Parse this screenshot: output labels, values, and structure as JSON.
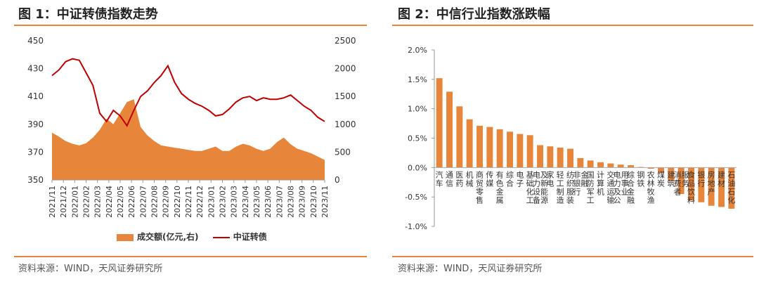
{
  "left": {
    "title": "图 1：中证转债指数走势",
    "source": "资料来源：WIND，天风证券研究所",
    "legend": {
      "volume_label": "成交额(亿元,右)",
      "index_label": "中证转债"
    },
    "colors": {
      "volume": "#e7853a",
      "index": "#c00000",
      "rule": "#e7853a"
    }
  },
  "right": {
    "title": "图 2：中信行业指数涨跌幅",
    "source": "资料来源：WIND，天风证券研究所",
    "colors": {
      "bar": "#e7853a",
      "rule": "#e7853a"
    }
  },
  "chart_data": [
    {
      "type": "line",
      "x_ticks": [
        "2021/11",
        "2021/12",
        "2022/01",
        "2022/02",
        "2022/03",
        "2022/04",
        "2022/05",
        "2022/06",
        "2022/07",
        "2022/08",
        "2022/09",
        "2022/10",
        "2022/11",
        "2022/12",
        "2023/01",
        "2023/02",
        "2023/03",
        "2023/04",
        "2023/05",
        "2023/06",
        "2023/07",
        "2023/08",
        "2023/09",
        "2023/10",
        "2023/11"
      ],
      "y_left_ticks": [
        "450",
        "430",
        "410",
        "390",
        "370",
        "350"
      ],
      "y_right_ticks": [
        "2500",
        "2000",
        "1500",
        "1000",
        "500",
        "0"
      ],
      "ylim_left": [
        350,
        450
      ],
      "ylim_right": [
        0,
        2500
      ],
      "series": [
        {
          "name": "中证转债",
          "axis": "left",
          "values": [
            425,
            429,
            435,
            437,
            436,
            427,
            418,
            398,
            392,
            400,
            396,
            389,
            400,
            410,
            414,
            420,
            425,
            432,
            420,
            412,
            408,
            405,
            403,
            400,
            396,
            397,
            401,
            406,
            409,
            410,
            407,
            409,
            408,
            408,
            409,
            411,
            407,
            403,
            400,
            395,
            392
          ]
        },
        {
          "name": "成交额(亿元,右)",
          "axis": "right",
          "values": [
            850,
            780,
            700,
            650,
            620,
            660,
            760,
            900,
            1100,
            1000,
            1200,
            1400,
            1450,
            950,
            800,
            700,
            620,
            600,
            580,
            560,
            540,
            520,
            520,
            560,
            600,
            520,
            520,
            600,
            650,
            620,
            560,
            520,
            560,
            680,
            760,
            640,
            560,
            520,
            480,
            420,
            360
          ]
        }
      ]
    },
    {
      "type": "bar",
      "y_ticks": [
        "2.0%",
        "1.5%",
        "1.0%",
        "0.5%",
        "0.0%",
        "-0.5%",
        "-1.0%"
      ],
      "ylim": [
        -1.0,
        2.0
      ],
      "categories": [
        "汽车",
        "通信",
        "医药",
        "机械",
        "商贸零售",
        "传媒",
        "有色金属",
        "综合",
        "电子",
        "基础化工",
        "电力设备及新能源",
        "家电",
        "轻工制造",
        "纺织服装",
        "非银行金融",
        "国防军工",
        "计算机",
        "交通运输",
        "电力及公用事业",
        "综合金融",
        "钢铁",
        "农林牧渔",
        "煤炭",
        "建筑",
        "消费者服务",
        "食品饮料",
        "银行",
        "房地产",
        "建材",
        "石油石化"
      ],
      "values": [
        1.52,
        1.29,
        1.04,
        0.82,
        0.71,
        0.69,
        0.65,
        0.61,
        0.57,
        0.55,
        0.38,
        0.36,
        0.34,
        0.32,
        0.16,
        0.12,
        0.09,
        0.07,
        0.05,
        0.04,
        0.01,
        -0.02,
        -0.09,
        -0.23,
        -0.45,
        -0.56,
        -0.59,
        -0.65,
        -0.67,
        -0.7
      ]
    }
  ]
}
